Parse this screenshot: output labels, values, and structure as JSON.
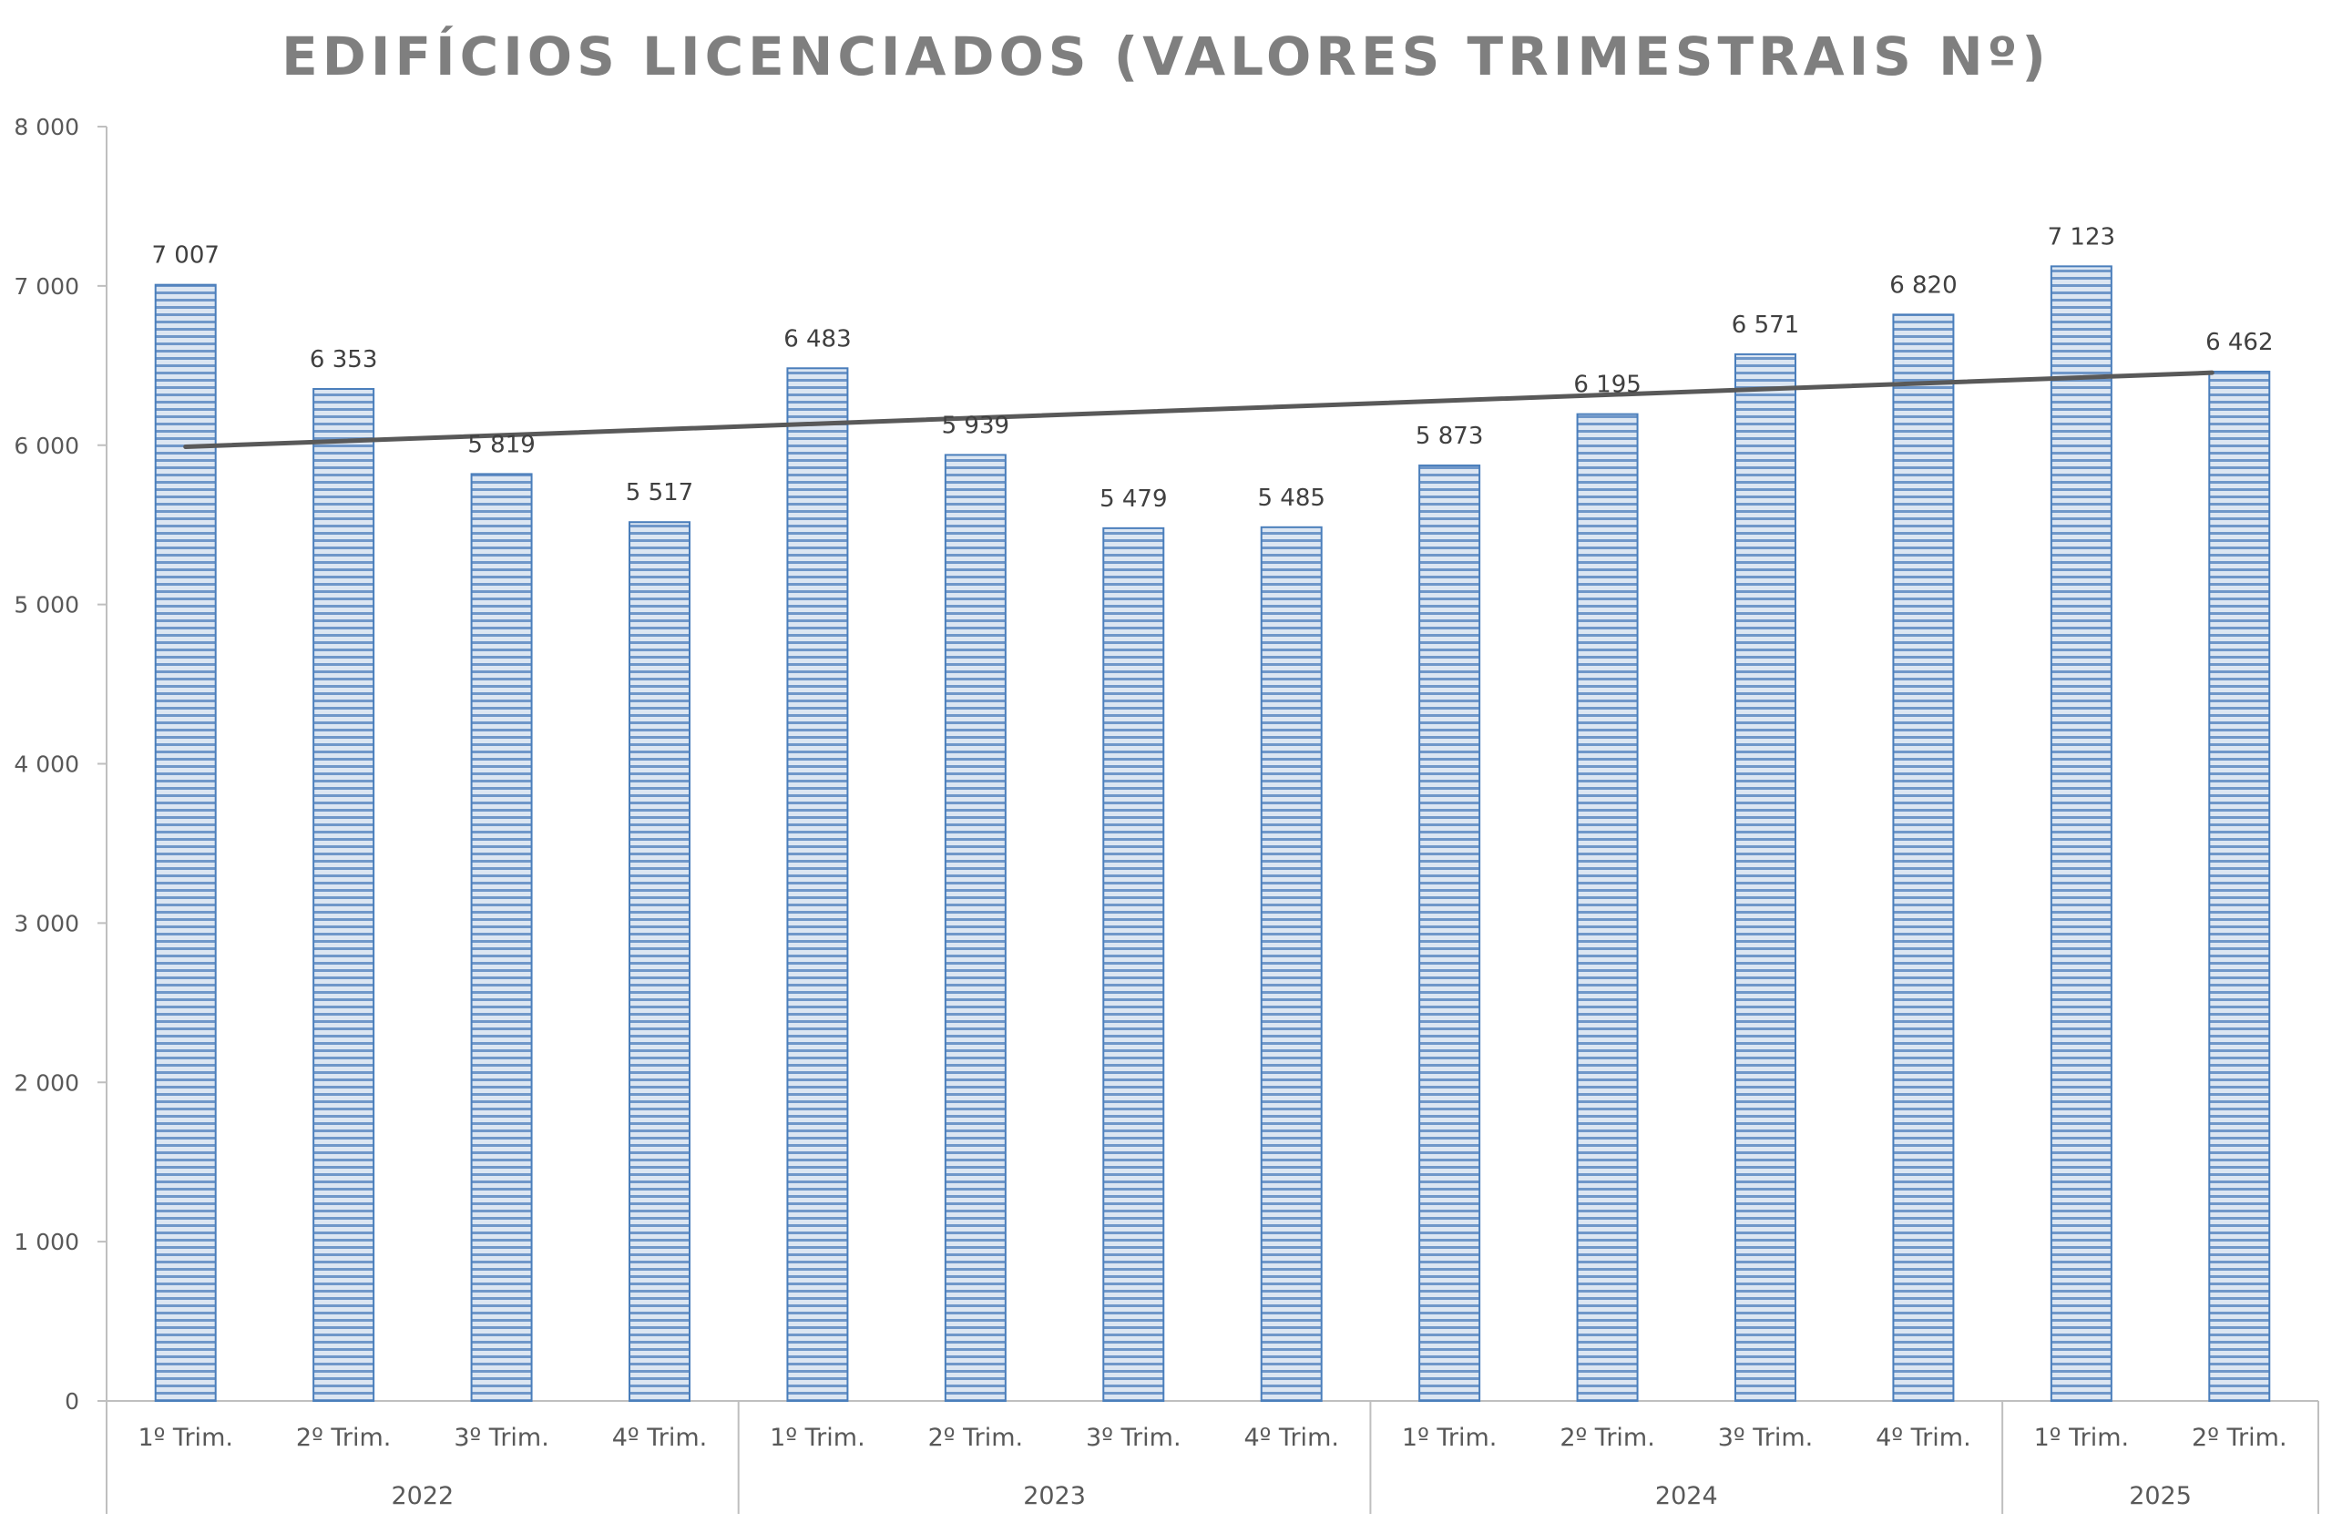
{
  "chart_data": {
    "type": "bar",
    "title": "EDIFÍCIOS LICENCIADOS (VALORES TRIMESTRAIS Nº)",
    "xlabel": "",
    "ylabel": "",
    "ylim": [
      0,
      8000
    ],
    "y_ticks": [
      "0",
      "1 000",
      "2 000",
      "3 000",
      "4 000",
      "5 000",
      "6 000",
      "7 000",
      "8 000"
    ],
    "groups": [
      {
        "label": "2022",
        "categories": [
          "1º Trim.",
          "2º Trim.",
          "3º Trim.",
          "4º Trim."
        ]
      },
      {
        "label": "2023",
        "categories": [
          "1º Trim.",
          "2º Trim.",
          "3º Trim.",
          "4º Trim."
        ]
      },
      {
        "label": "2024",
        "categories": [
          "1º Trim.",
          "2º Trim.",
          "3º Trim.",
          "4º Trim."
        ]
      },
      {
        "label": "2025",
        "categories": [
          "1º Trim.",
          "2º Trim."
        ]
      }
    ],
    "values": [
      7007,
      6353,
      5819,
      5517,
      6483,
      5939,
      5479,
      5485,
      5873,
      6195,
      6571,
      6820,
      7123,
      6462
    ],
    "value_labels": [
      "7 007",
      "6 353",
      "5 819",
      "5 517",
      "6 483",
      "5 939",
      "5 479",
      "5 485",
      "5 873",
      "6 195",
      "6 571",
      "6 820",
      "7 123",
      "6 462"
    ],
    "trendline": {
      "type": "linear",
      "start": 5990,
      "end": 6455
    },
    "grid": false,
    "legend": "none",
    "colors": {
      "bar_fill": "#dce6f2",
      "bar_stripe": "#4f81bd",
      "bar_border": "#4a7ebb",
      "trend": "#595959",
      "axis": "#bfbfbf",
      "title": "#7f7f7f"
    }
  }
}
